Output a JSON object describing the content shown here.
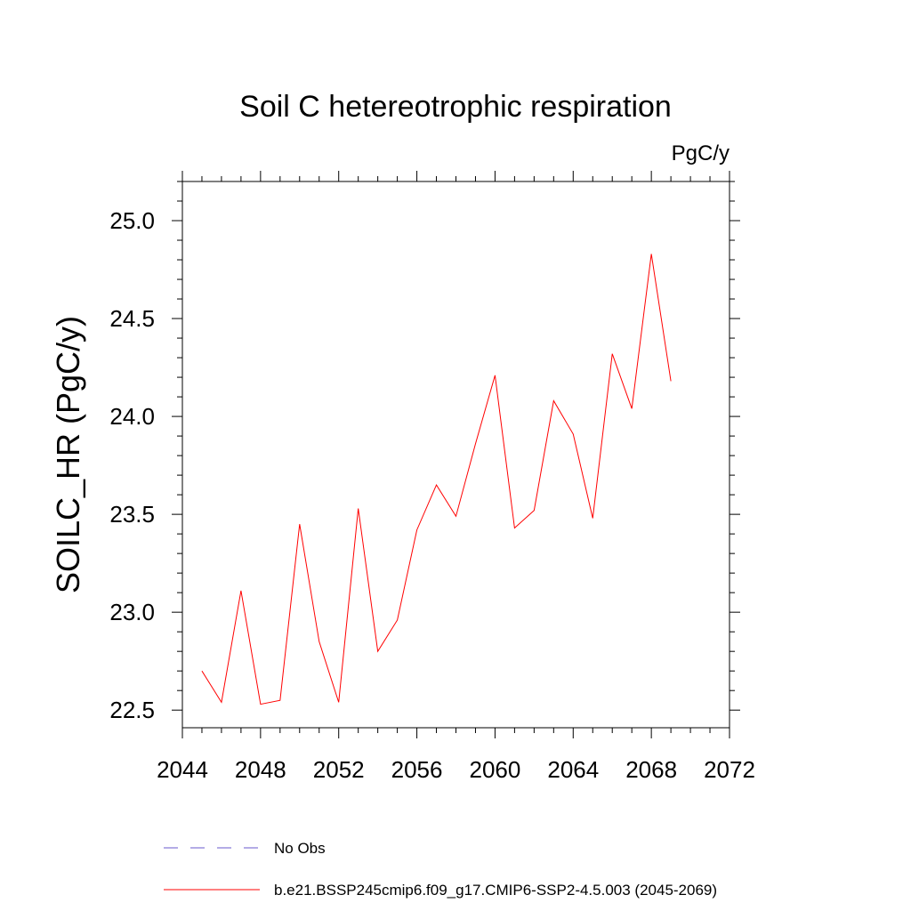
{
  "chart_data": {
    "type": "line",
    "title": "Soil C hetereotrophic respiration",
    "units_label": "PgC/y",
    "xlabel": "",
    "ylabel": "SOILC_HR  (PgC/y)",
    "xlim": [
      2044,
      2072
    ],
    "ylim": [
      22.41,
      25.2
    ],
    "x_ticks": [
      2044,
      2048,
      2052,
      2056,
      2060,
      2064,
      2068,
      2072
    ],
    "x_tick_labels": [
      "2044",
      "2048",
      "2052",
      "2056",
      "2060",
      "2064",
      "2068",
      "2072"
    ],
    "y_ticks": [
      22.5,
      23.0,
      23.5,
      24.0,
      24.5,
      25.0
    ],
    "y_tick_labels": [
      "22.5",
      "23.0",
      "23.5",
      "24.0",
      "24.5",
      "25.0"
    ],
    "series": [
      {
        "name": "b.e21.BSSP245cmip6.f09_g17.CMIP6-SSP2-4.5.003 (2045-2069)",
        "color": "#ff0000",
        "style": "solid",
        "x": [
          2045,
          2046,
          2047,
          2048,
          2049,
          2050,
          2051,
          2052,
          2053,
          2054,
          2055,
          2056,
          2057,
          2058,
          2059,
          2060,
          2061,
          2062,
          2063,
          2064,
          2065,
          2066,
          2067,
          2068,
          2069
        ],
        "values": [
          22.7,
          22.54,
          23.11,
          22.53,
          22.55,
          23.45,
          22.85,
          22.54,
          23.53,
          22.8,
          22.96,
          23.42,
          23.65,
          23.49,
          23.86,
          24.21,
          23.43,
          23.52,
          24.08,
          23.91,
          23.48,
          24.32,
          24.04,
          24.83,
          24.18
        ]
      }
    ],
    "legend": [
      {
        "label": "No Obs",
        "color": "#6a5acd",
        "style": "dashed"
      },
      {
        "label": "b.e21.BSSP245cmip6.f09_g17.CMIP6-SSP2-4.5.003 (2045-2069)",
        "color": "#ff0000",
        "style": "solid"
      }
    ],
    "legend_position": "bottom",
    "grid": false
  }
}
